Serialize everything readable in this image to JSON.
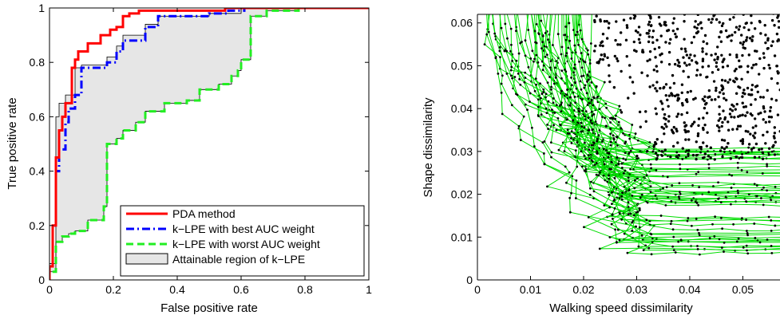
{
  "chart_data": [
    {
      "type": "line",
      "title": "",
      "xlabel": "False positive rate",
      "ylabel": "True positive rate",
      "xlim": [
        0,
        1
      ],
      "ylim": [
        0,
        1
      ],
      "xticks": [
        "0",
        "0.2",
        "0.4",
        "0.6",
        "0.8",
        "1"
      ],
      "yticks": [
        "0",
        "0.2",
        "0.4",
        "0.6",
        "0.8",
        "1"
      ],
      "grid": false,
      "legend_position": "bottom-right",
      "series": [
        {
          "name": "PDA method",
          "color": "#ff0000",
          "style": "solid",
          "x": [
            0,
            0,
            0.01,
            0.01,
            0.02,
            0.02,
            0.03,
            0.03,
            0.04,
            0.04,
            0.05,
            0.05,
            0.07,
            0.07,
            0.08,
            0.08,
            0.09,
            0.09,
            0.12,
            0.12,
            0.16,
            0.16,
            0.19,
            0.19,
            0.21,
            0.21,
            0.23,
            0.23,
            0.25,
            0.25,
            0.28,
            0.28,
            0.31,
            0.31,
            0.55,
            0.55,
            0.59,
            0.59,
            0.78,
            0.78,
            1.0
          ],
          "y": [
            0,
            0.05,
            0.05,
            0.2,
            0.2,
            0.45,
            0.45,
            0.55,
            0.55,
            0.6,
            0.6,
            0.65,
            0.65,
            0.78,
            0.78,
            0.81,
            0.81,
            0.84,
            0.84,
            0.87,
            0.87,
            0.9,
            0.9,
            0.92,
            0.92,
            0.93,
            0.93,
            0.97,
            0.97,
            0.98,
            0.98,
            0.99,
            0.99,
            0.99,
            0.99,
            1.0,
            1.0,
            1.0,
            1.0,
            1.0,
            1.0
          ]
        },
        {
          "name": "k−LPE with best AUC weight",
          "color": "#0000ff",
          "style": "dashdot",
          "x": [
            0,
            0,
            0.01,
            0.01,
            0.02,
            0.02,
            0.03,
            0.03,
            0.05,
            0.05,
            0.06,
            0.06,
            0.08,
            0.08,
            0.1,
            0.1,
            0.18,
            0.18,
            0.21,
            0.21,
            0.23,
            0.23,
            0.3,
            0.3,
            0.34,
            0.34,
            0.5,
            0.5,
            0.56,
            0.56,
            0.61,
            0.61,
            0.78,
            0.78,
            1.0
          ],
          "y": [
            0,
            0.05,
            0.05,
            0.2,
            0.2,
            0.4,
            0.4,
            0.48,
            0.48,
            0.58,
            0.58,
            0.63,
            0.63,
            0.68,
            0.68,
            0.78,
            0.78,
            0.8,
            0.8,
            0.84,
            0.84,
            0.88,
            0.88,
            0.93,
            0.93,
            0.97,
            0.97,
            0.98,
            0.98,
            0.99,
            0.99,
            1.0,
            1.0,
            1.0,
            1.0
          ]
        },
        {
          "name": "k−LPE with worst AUC weight",
          "color": "#22ee22",
          "style": "dashed",
          "x": [
            0,
            0,
            0.02,
            0.02,
            0.04,
            0.04,
            0.06,
            0.06,
            0.08,
            0.08,
            0.12,
            0.12,
            0.17,
            0.17,
            0.18,
            0.18,
            0.21,
            0.21,
            0.23,
            0.23,
            0.27,
            0.27,
            0.3,
            0.3,
            0.36,
            0.36,
            0.43,
            0.43,
            0.47,
            0.47,
            0.53,
            0.53,
            0.57,
            0.57,
            0.59,
            0.59,
            0.6,
            0.6,
            0.63,
            0.63,
            0.68,
            0.68,
            0.78,
            0.78,
            1.0
          ],
          "y": [
            0,
            0.03,
            0.03,
            0.14,
            0.14,
            0.16,
            0.16,
            0.17,
            0.17,
            0.18,
            0.18,
            0.22,
            0.22,
            0.27,
            0.27,
            0.5,
            0.5,
            0.52,
            0.52,
            0.55,
            0.55,
            0.58,
            0.58,
            0.62,
            0.62,
            0.65,
            0.65,
            0.66,
            0.66,
            0.7,
            0.7,
            0.72,
            0.72,
            0.75,
            0.75,
            0.77,
            0.77,
            0.81,
            0.81,
            0.97,
            0.97,
            0.99,
            0.99,
            1.0,
            1.0
          ]
        }
      ],
      "region": {
        "name": "Attainable region of k−LPE",
        "color": "#e6e6e6",
        "upper": {
          "x": [
            0,
            0,
            0.02,
            0.02,
            0.03,
            0.03,
            0.05,
            0.05,
            0.08,
            0.08,
            0.1,
            0.1,
            0.18,
            0.18,
            0.21,
            0.21,
            0.23,
            0.23,
            0.3,
            0.3,
            0.34,
            0.34,
            0.5,
            0.5,
            0.6,
            0.6,
            0.78,
            0.78,
            1.0
          ],
          "y": [
            0,
            0.06,
            0.06,
            0.6,
            0.6,
            0.65,
            0.65,
            0.68,
            0.68,
            0.78,
            0.78,
            0.79,
            0.79,
            0.82,
            0.82,
            0.86,
            0.86,
            0.9,
            0.9,
            0.94,
            0.94,
            0.97,
            0.97,
            0.98,
            0.98,
            1.0,
            1.0,
            1.0,
            1.0
          ]
        }
      }
    },
    {
      "type": "scatter",
      "title": "",
      "xlabel": "Walking speed dissimilarity",
      "ylabel": "Shape dissimilarity",
      "xlim": [
        0,
        0.057
      ],
      "ylim": [
        0,
        0.062
      ],
      "xticks": [
        "0",
        "0.01",
        "0.02",
        "0.03",
        "0.04",
        "0.05"
      ],
      "yticks": [
        "0",
        "0.01",
        "0.02",
        "0.03",
        "0.04",
        "0.05",
        "0.06"
      ],
      "grid": false,
      "point_color": "#000000",
      "line_color": "#00dd00",
      "description_note": "dense cloud of black points in the upper right; many green connected paths fill the region below and to the left"
    }
  ]
}
